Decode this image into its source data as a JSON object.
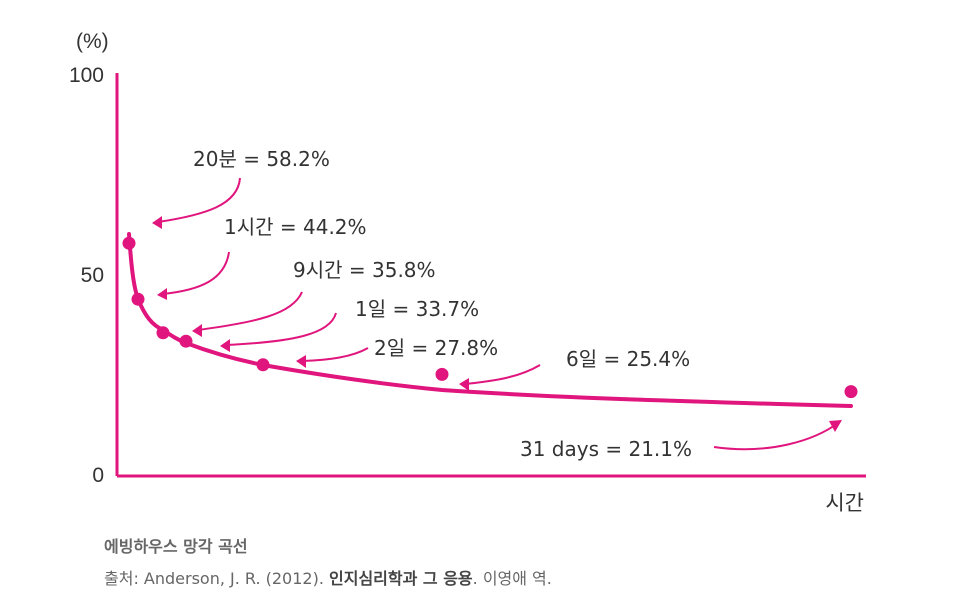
{
  "chart_data": {
    "type": "line",
    "y_unit": "(%)",
    "xlabel": "시간",
    "ylim": [
      0,
      100
    ],
    "y_ticks": [
      0,
      50,
      100
    ],
    "points": [
      {
        "label": "20분 = 58.2%",
        "value": 58.2
      },
      {
        "label": "1시간 = 44.2%",
        "value": 44.2
      },
      {
        "label": "9시간 = 35.8%",
        "value": 35.8
      },
      {
        "label": "1일 = 33.7%",
        "value": 33.7
      },
      {
        "label": "2일 = 27.8%",
        "value": 27.8
      },
      {
        "label": "6일 = 25.4%",
        "value": 25.4
      },
      {
        "label": "31 days = 21.1%",
        "value": 21.1
      }
    ],
    "color": "#e0157d"
  },
  "caption": {
    "title": "에빙하우스 망각 곡선",
    "source_prefix": "출처: Anderson, J. R. (2012). ",
    "source_book": "인지심리학과 그 응용",
    "source_suffix": ". 이영애 역."
  }
}
